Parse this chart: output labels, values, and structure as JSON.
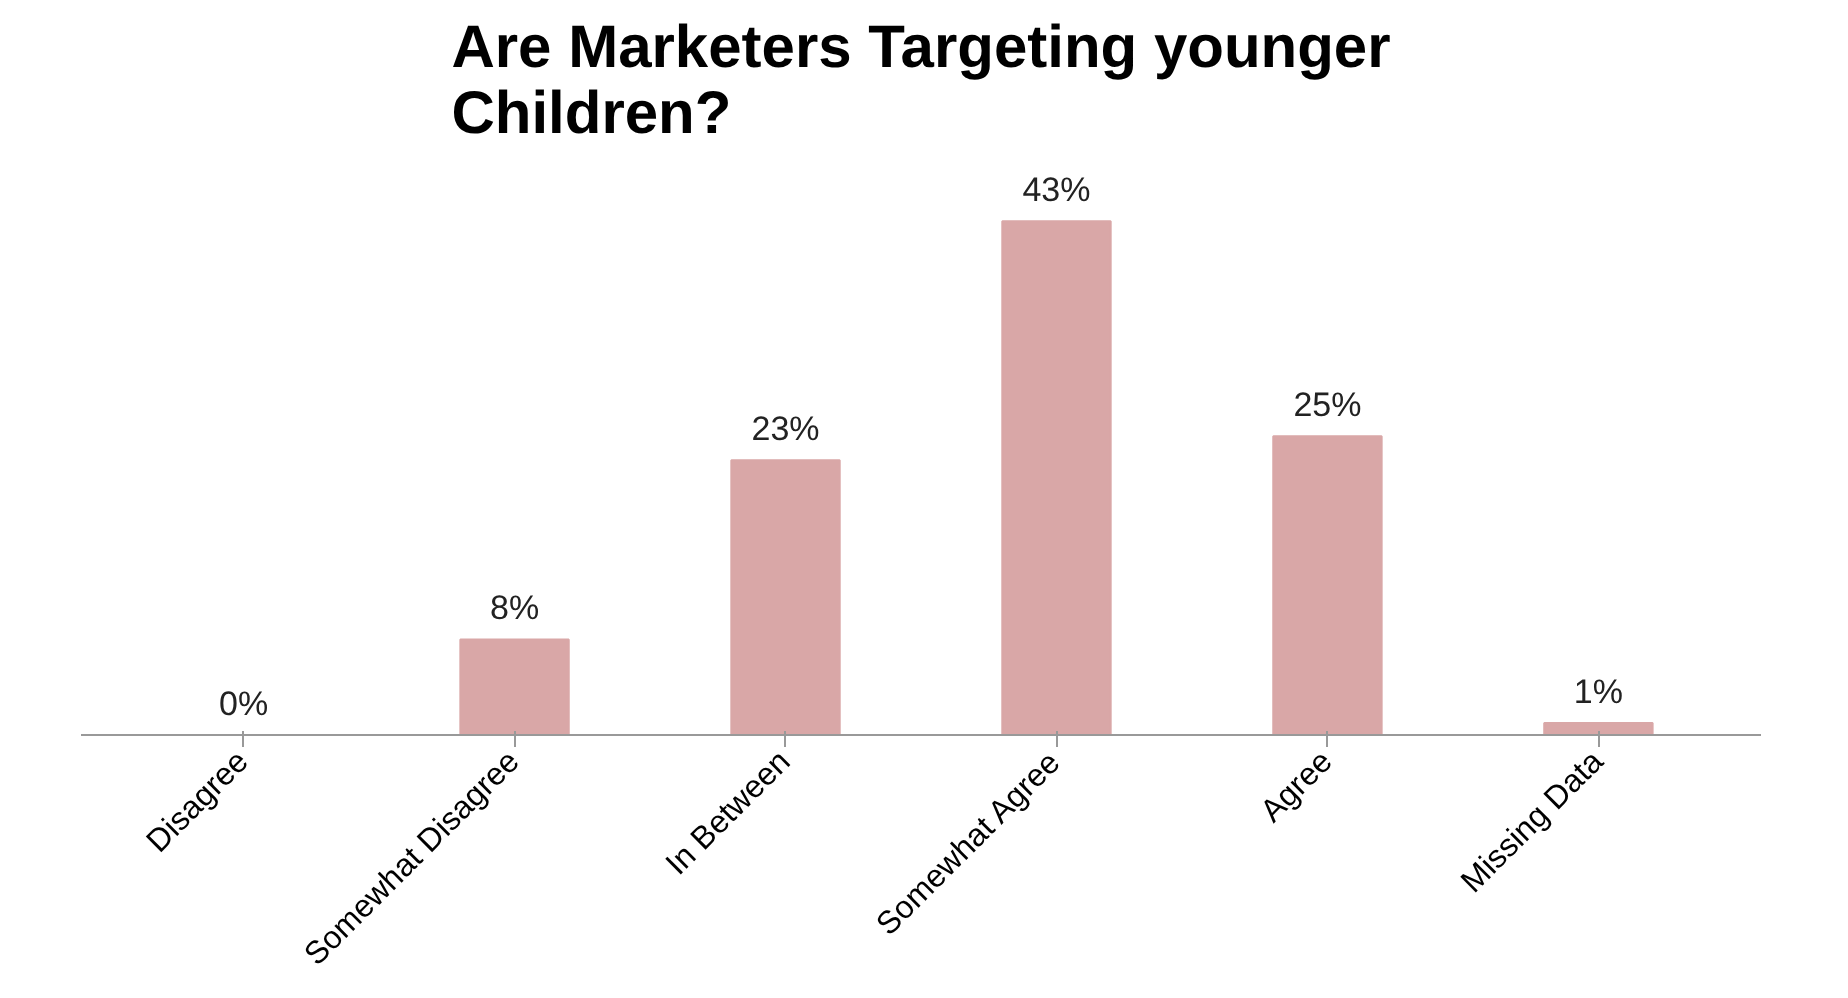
{
  "chart_data": {
    "type": "bar",
    "title": "Are Marketers Targeting younger Children?",
    "categories": [
      "Disagree",
      "Somewhat Disagree",
      "In Between",
      "Somewhat Agree",
      "Agree",
      "Missing Data"
    ],
    "values": [
      0,
      8,
      23,
      43,
      25,
      1
    ],
    "value_labels": [
      "0%",
      "8%",
      "23%",
      "43%",
      "25%",
      "1%"
    ],
    "color": "#d9a7a7",
    "tick_labels": "x",
    "grid": false
  }
}
